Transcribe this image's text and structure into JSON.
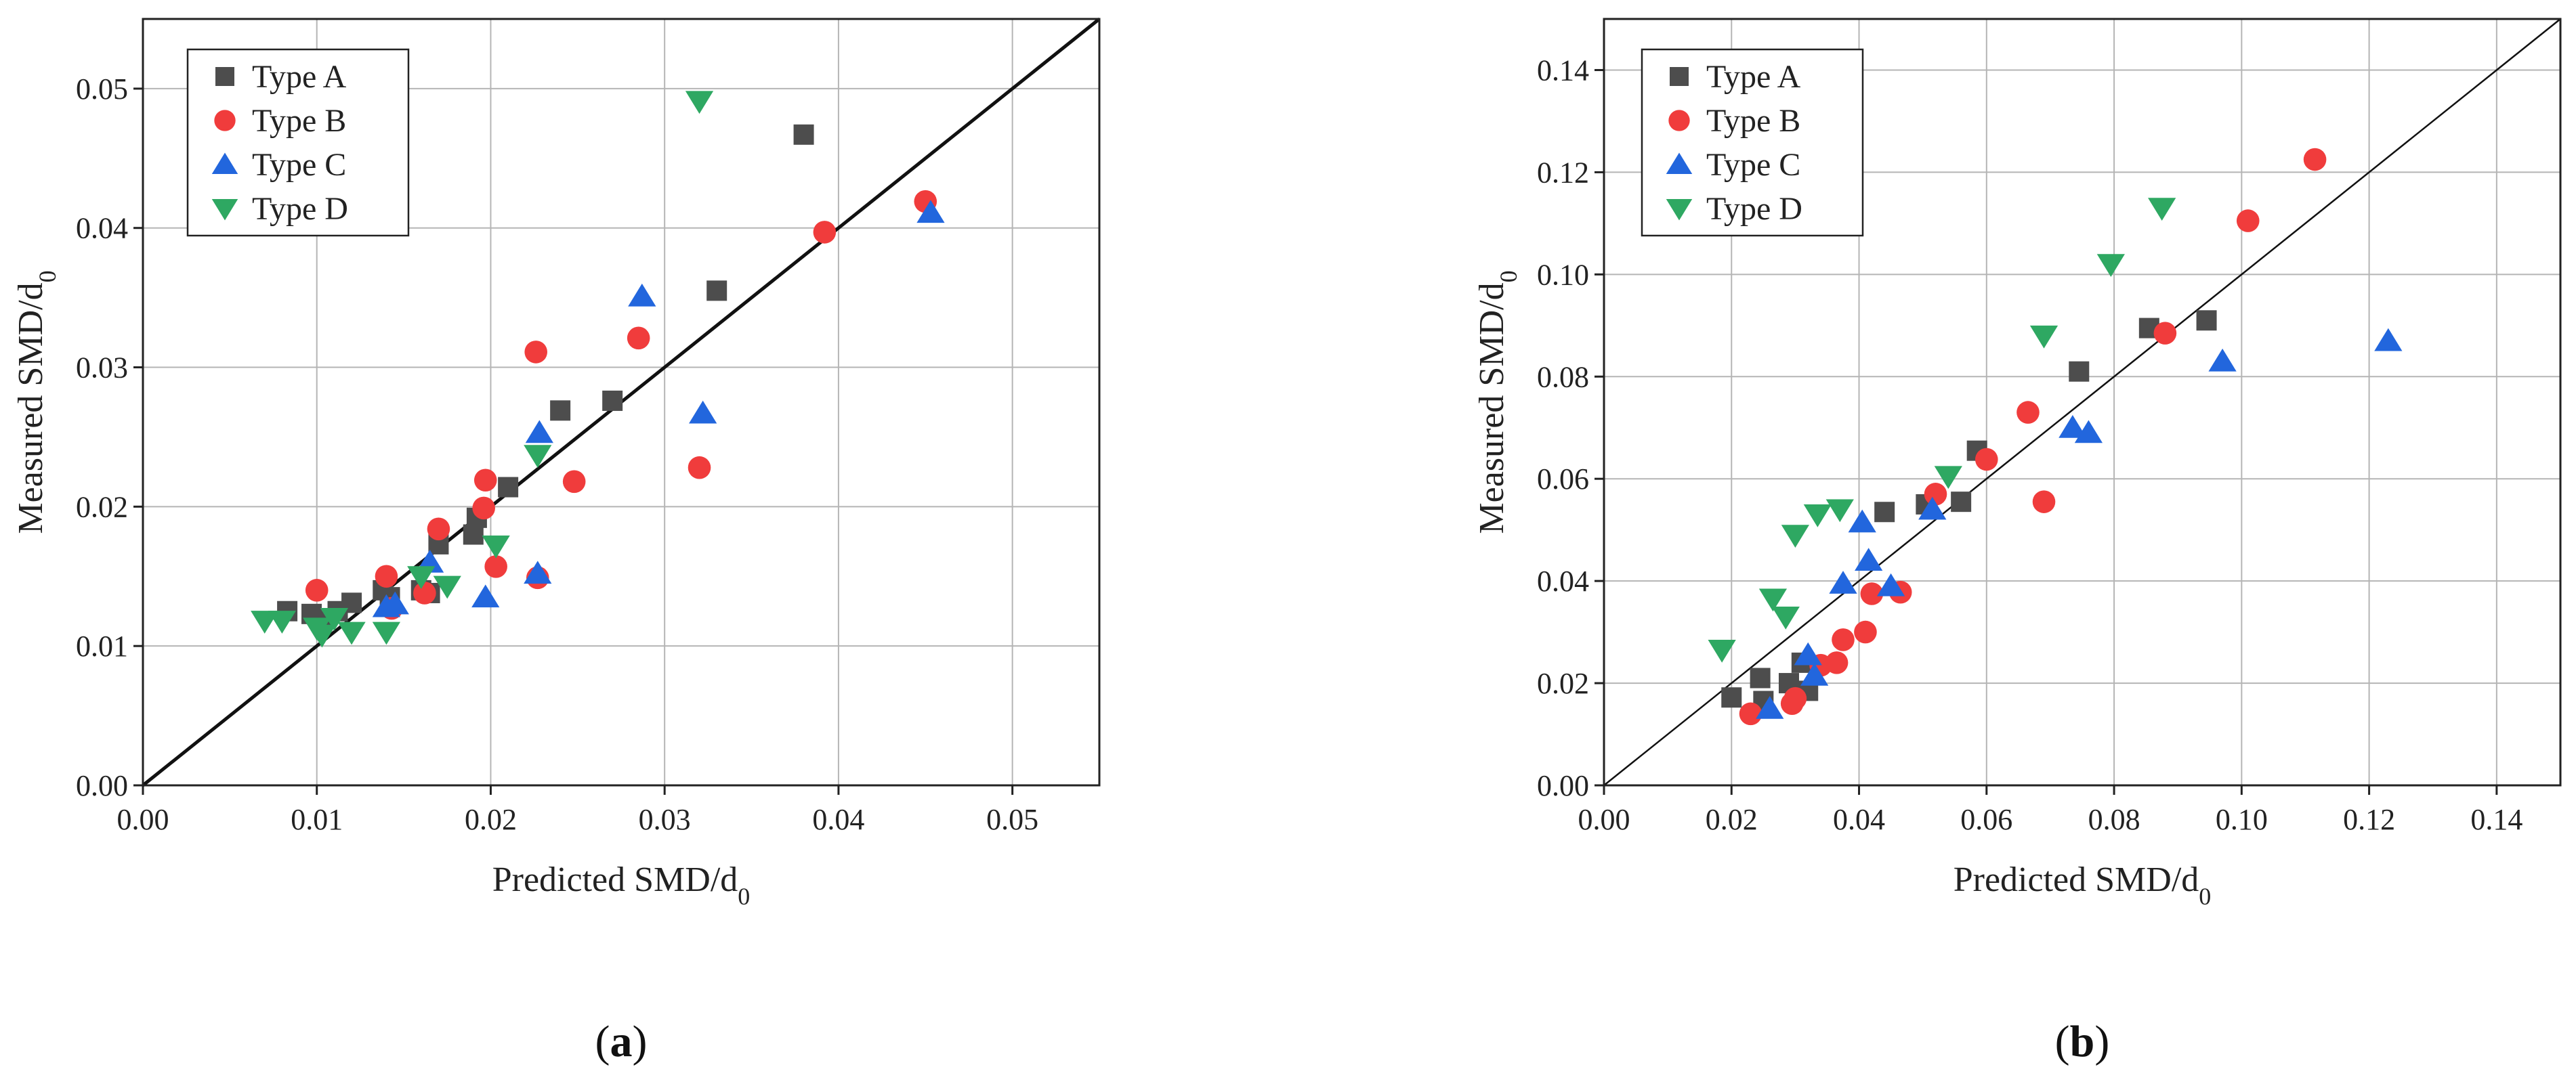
{
  "chart_data": [
    {
      "type": "scatter",
      "panel": "(a)",
      "panel_letter": "a",
      "xlabel": "Predicted SMD/d",
      "ylabel": "Measured SMD/d",
      "label_subscript": "0",
      "xlim": [
        0,
        0.055
      ],
      "ylim": [
        0,
        0.055
      ],
      "xticks": [
        0.0,
        0.01,
        0.02,
        0.03,
        0.04,
        0.05
      ],
      "yticks": [
        0.0,
        0.01,
        0.02,
        0.03,
        0.04,
        0.05
      ],
      "xtick_labels": [
        "0.00",
        "0.01",
        "0.02",
        "0.03",
        "0.04",
        "0.05"
      ],
      "ytick_labels": [
        "0.00",
        "0.01",
        "0.02",
        "0.03",
        "0.04",
        "0.05"
      ],
      "grid": true,
      "legend_position": "top-left",
      "reference_line": "y = x",
      "series": [
        {
          "name": "Type A",
          "marker": "square",
          "color": "#4d4d4d",
          "x": [
            0.0083,
            0.0097,
            0.0103,
            0.0112,
            0.012,
            0.0138,
            0.0142,
            0.016,
            0.0165,
            0.017,
            0.019,
            0.0192,
            0.021,
            0.024,
            0.027,
            0.033,
            0.038
          ],
          "y": [
            0.0125,
            0.0123,
            0.0118,
            0.0125,
            0.0131,
            0.014,
            0.0135,
            0.014,
            0.0138,
            0.0173,
            0.018,
            0.0192,
            0.0214,
            0.0269,
            0.0276,
            0.0355,
            0.0467
          ]
        },
        {
          "name": "Type B",
          "marker": "circle",
          "color": "#f03c3c",
          "x": [
            0.01,
            0.014,
            0.0143,
            0.0162,
            0.017,
            0.0196,
            0.0197,
            0.0203,
            0.0226,
            0.0227,
            0.0248,
            0.0285,
            0.032,
            0.0392,
            0.045
          ],
          "y": [
            0.014,
            0.015,
            0.0127,
            0.0138,
            0.0184,
            0.0199,
            0.0219,
            0.0157,
            0.0311,
            0.0149,
            0.0218,
            0.0321,
            0.0228,
            0.0397,
            0.0419
          ]
        },
        {
          "name": "Type C",
          "marker": "triangle-up",
          "color": "#2266dd",
          "x": [
            0.014,
            0.0145,
            0.0165,
            0.0197,
            0.0227,
            0.0228,
            0.0287,
            0.0322,
            0.0453
          ],
          "y": [
            0.0128,
            0.013,
            0.016,
            0.0135,
            0.0152,
            0.0253,
            0.0351,
            0.0267,
            0.0411
          ]
        },
        {
          "name": "Type D",
          "marker": "triangle-down",
          "color": "#2ea862",
          "x": [
            0.007,
            0.008,
            0.01,
            0.0103,
            0.011,
            0.012,
            0.014,
            0.016,
            0.0175,
            0.0203,
            0.0227,
            0.032
          ],
          "y": [
            0.0118,
            0.0118,
            0.0113,
            0.0108,
            0.012,
            0.011,
            0.011,
            0.015,
            0.0143,
            0.0172,
            0.0237,
            0.0491
          ]
        }
      ]
    },
    {
      "type": "scatter",
      "panel": "(b)",
      "panel_letter": "b",
      "xlabel": "Predicted SMD/d",
      "ylabel": "Measured SMD/d",
      "label_subscript": "0",
      "xlim": [
        0,
        0.15
      ],
      "ylim": [
        0,
        0.15
      ],
      "xticks": [
        0.0,
        0.02,
        0.04,
        0.06,
        0.08,
        0.1,
        0.12,
        0.14
      ],
      "yticks": [
        0.0,
        0.02,
        0.04,
        0.06,
        0.08,
        0.1,
        0.12,
        0.14
      ],
      "xtick_labels": [
        "0.00",
        "0.02",
        "0.04",
        "0.06",
        "0.08",
        "0.10",
        "0.12",
        "0.14"
      ],
      "ytick_labels": [
        "0.00",
        "0.02",
        "0.04",
        "0.06",
        "0.08",
        "0.10",
        "0.12",
        "0.14"
      ],
      "grid": true,
      "legend_position": "top-left",
      "reference_line": "y = x",
      "series": [
        {
          "name": "Type A",
          "marker": "square",
          "color": "#4d4d4d",
          "x": [
            0.02,
            0.0245,
            0.025,
            0.029,
            0.031,
            0.032,
            0.044,
            0.0505,
            0.056,
            0.0585,
            0.0745,
            0.0855,
            0.0945
          ],
          "y": [
            0.0172,
            0.021,
            0.0165,
            0.02,
            0.024,
            0.0185,
            0.0535,
            0.055,
            0.0555,
            0.0655,
            0.081,
            0.0895,
            0.091
          ]
        },
        {
          "name": "Type B",
          "marker": "circle",
          "color": "#f03c3c",
          "x": [
            0.023,
            0.0295,
            0.03,
            0.034,
            0.0365,
            0.0375,
            0.041,
            0.042,
            0.0465,
            0.052,
            0.06,
            0.0665,
            0.069,
            0.088,
            0.101,
            0.1115
          ],
          "y": [
            0.014,
            0.016,
            0.017,
            0.0235,
            0.024,
            0.0285,
            0.03,
            0.0375,
            0.0378,
            0.057,
            0.0638,
            0.073,
            0.0555,
            0.0885,
            0.1105,
            0.1225
          ]
        },
        {
          "name": "Type C",
          "marker": "triangle-up",
          "color": "#2266dd",
          "x": [
            0.026,
            0.032,
            0.033,
            0.0375,
            0.0405,
            0.0415,
            0.045,
            0.0515,
            0.0735,
            0.076,
            0.097,
            0.123
          ],
          "y": [
            0.015,
            0.0255,
            0.0215,
            0.0395,
            0.0515,
            0.044,
            0.039,
            0.054,
            0.07,
            0.069,
            0.083,
            0.087
          ]
        },
        {
          "name": "Type D",
          "marker": "triangle-down",
          "color": "#2ea862",
          "x": [
            0.0185,
            0.0265,
            0.0285,
            0.03,
            0.0335,
            0.037,
            0.054,
            0.069,
            0.0795,
            0.0875
          ],
          "y": [
            0.0265,
            0.0365,
            0.033,
            0.049,
            0.053,
            0.054,
            0.0605,
            0.088,
            0.102,
            0.113
          ]
        }
      ]
    }
  ]
}
